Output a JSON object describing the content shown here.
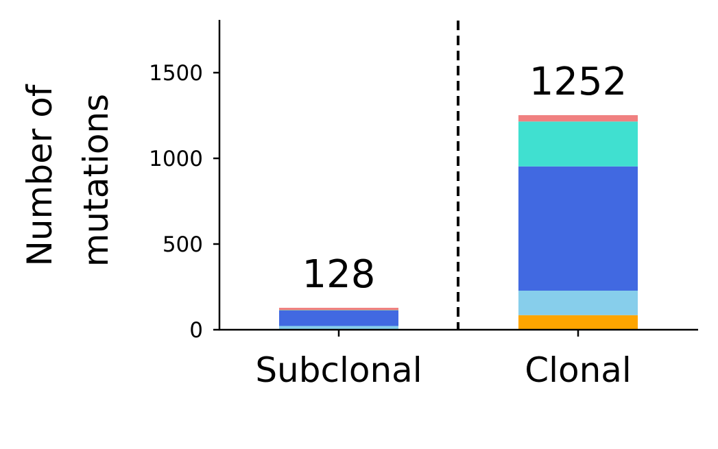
{
  "chart_data": {
    "type": "bar",
    "stacked": true,
    "categories": [
      "Subclonal",
      "Clonal"
    ],
    "ylabel_lines": [
      "Number of",
      "mutations"
    ],
    "ylim": [
      0,
      1800
    ],
    "yticks": [
      0,
      500,
      1000,
      1500
    ],
    "ytick_labels": [
      "0",
      "500",
      "1000",
      "1500"
    ],
    "totals": [
      128,
      1252
    ],
    "total_labels": [
      "128",
      "1252"
    ],
    "divider": "dashed vertical line between categories",
    "grid": false,
    "series": [
      {
        "color": "#FFA500",
        "values": [
          2,
          85
        ]
      },
      {
        "color": "#87CEEB",
        "values": [
          20,
          143
        ]
      },
      {
        "color": "#4169E1",
        "values": [
          90,
          725
        ]
      },
      {
        "color": "#40E0D0",
        "values": [
          2,
          262
        ]
      },
      {
        "color": "#F08080",
        "values": [
          14,
          37
        ]
      }
    ]
  }
}
